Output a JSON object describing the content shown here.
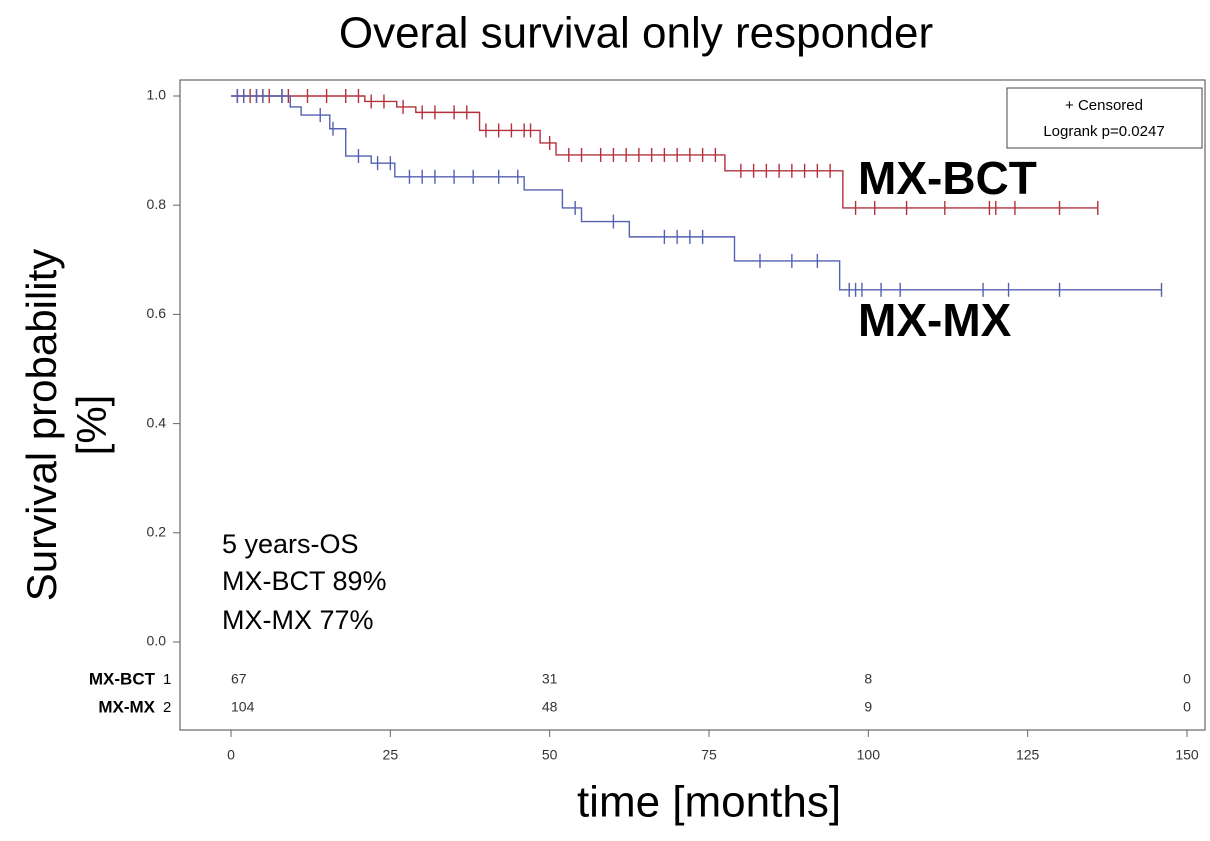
{
  "chart_data": {
    "type": "step",
    "title": "Overal survival only responder",
    "xlabel": "time [months]",
    "ylabel": [
      "Survival probability",
      "[%]"
    ],
    "xlim": [
      0,
      150
    ],
    "xticks": [
      0,
      25,
      50,
      75,
      100,
      125,
      150
    ],
    "ylim": [
      0,
      1
    ],
    "yticks": [
      {
        "value": 0,
        "label": "0.0"
      },
      0.2,
      0.4,
      0.6,
      0.8,
      {
        "value": 1,
        "label": "1.0"
      }
    ],
    "legend": [
      "+ Censored",
      "Logrank p=0.0247"
    ],
    "series": [
      {
        "name": "MX-BCT",
        "color": "#b3303c",
        "x": [
          0,
          21,
          26,
          29,
          39,
          48.5,
          51,
          77.5,
          96,
          136
        ],
        "values": [
          1.0,
          0.99,
          0.98,
          0.97,
          0.937,
          0.914,
          0.892,
          0.863,
          0.795,
          0.795
        ],
        "censored": [
          1,
          2,
          3,
          4,
          5,
          6,
          8,
          9,
          12,
          15,
          18,
          20,
          22,
          24,
          27,
          30,
          32,
          35,
          37,
          40,
          42,
          44,
          46,
          47,
          50,
          53,
          55,
          58,
          60,
          62,
          64,
          66,
          68,
          70,
          72,
          74,
          76,
          80,
          82,
          84,
          86,
          88,
          90,
          92,
          94,
          98,
          101,
          106,
          112,
          119,
          120,
          123,
          130,
          136
        ]
      },
      {
        "name": "MX-MX",
        "color": "#5461b0",
        "x": [
          0,
          9.3,
          11,
          15.5,
          18,
          22,
          25.7,
          46,
          52,
          55,
          62.5,
          79,
          95.5,
          146
        ],
        "values": [
          1.0,
          0.98,
          0.965,
          0.94,
          0.89,
          0.877,
          0.852,
          0.828,
          0.795,
          0.77,
          0.742,
          0.698,
          0.645,
          0.645
        ],
        "censored": [
          1,
          2,
          4,
          5,
          8,
          14,
          16,
          20,
          23,
          25,
          28,
          30,
          32,
          35,
          38,
          42,
          45,
          54,
          60,
          68,
          70,
          72,
          74,
          83,
          88,
          92,
          97,
          98,
          99,
          102,
          105,
          118,
          122,
          130,
          146
        ]
      }
    ],
    "annotations": [
      "5 years-OS",
      "MX-BCT 89%",
      "MX-MX 77%"
    ],
    "at_risk": {
      "times": [
        0,
        50,
        100,
        150
      ],
      "rows": [
        {
          "name": "MX-BCT",
          "index": "1",
          "values": [
            67,
            31,
            8,
            0
          ]
        },
        {
          "name": "MX-MX",
          "index": "2",
          "values": [
            104,
            48,
            9,
            0
          ]
        }
      ]
    }
  }
}
